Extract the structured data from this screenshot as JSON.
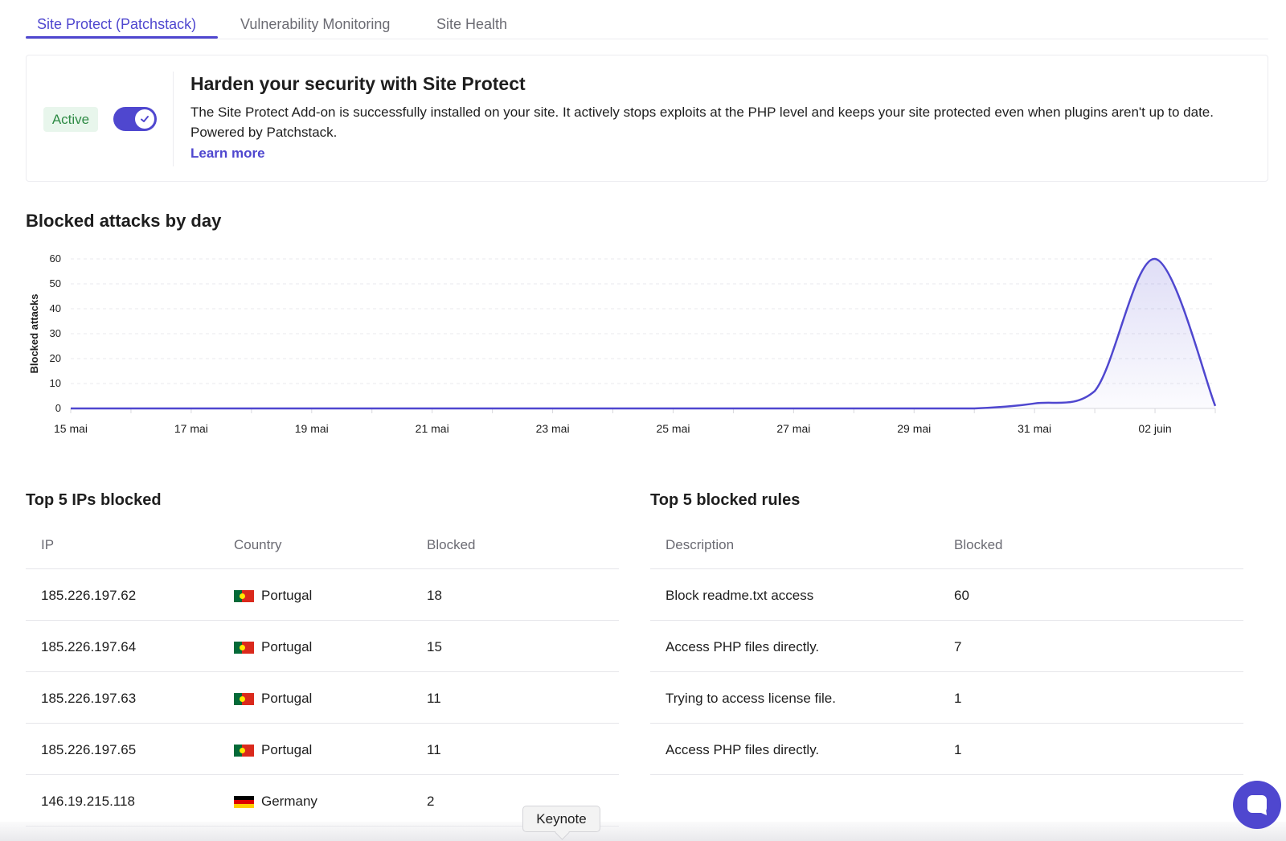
{
  "tabs": [
    {
      "label": "Site Protect (Patchstack)",
      "active": true
    },
    {
      "label": "Vulnerability Monitoring",
      "active": false
    },
    {
      "label": "Site Health",
      "active": false
    }
  ],
  "protect_card": {
    "status_badge": "Active",
    "toggle_on": true,
    "title": "Harden your security with Site Protect",
    "description": "The Site Protect Add-on is successfully installed on your site. It actively stops exploits at the PHP level and keeps your site protected even when plugins aren't up to date. Powered by Patchstack.",
    "learn_more": "Learn more"
  },
  "chart_section": {
    "title": "Blocked attacks by day"
  },
  "chart_data": {
    "type": "area",
    "title": "",
    "xlabel": "",
    "ylabel": "Blocked attacks",
    "ylim": [
      0,
      60
    ],
    "yticks": [
      0,
      10,
      20,
      30,
      40,
      50,
      60
    ],
    "xticks": [
      "15 mai",
      "17 mai",
      "19 mai",
      "21 mai",
      "23 mai",
      "25 mai",
      "27 mai",
      "29 mai",
      "31 mai",
      "02 juin"
    ],
    "grid": true,
    "series": [
      {
        "color": "#4f47cf",
        "x": [
          "15 mai",
          "16 mai",
          "17 mai",
          "18 mai",
          "19 mai",
          "20 mai",
          "21 mai",
          "22 mai",
          "23 mai",
          "24 mai",
          "25 mai",
          "26 mai",
          "27 mai",
          "28 mai",
          "29 mai",
          "30 mai",
          "31 mai",
          "01 juin",
          "02 juin",
          "03 juin"
        ],
        "values": [
          0,
          0,
          0,
          0,
          0,
          0,
          0,
          0,
          0,
          0,
          0,
          0,
          0,
          0,
          0,
          0,
          2,
          7,
          60,
          1
        ]
      }
    ]
  },
  "ips_table": {
    "title": "Top 5 IPs blocked",
    "headers": [
      "IP",
      "Country",
      "Blocked"
    ],
    "rows": [
      {
        "ip": "185.226.197.62",
        "country": "Portugal",
        "flag": "pt",
        "blocked": "18"
      },
      {
        "ip": "185.226.197.64",
        "country": "Portugal",
        "flag": "pt",
        "blocked": "15"
      },
      {
        "ip": "185.226.197.63",
        "country": "Portugal",
        "flag": "pt",
        "blocked": "11"
      },
      {
        "ip": "185.226.197.65",
        "country": "Portugal",
        "flag": "pt",
        "blocked": "11"
      },
      {
        "ip": "146.19.215.118",
        "country": "Germany",
        "flag": "de",
        "blocked": "2"
      }
    ]
  },
  "rules_table": {
    "title": "Top 5 blocked rules",
    "headers": [
      "Description",
      "Blocked"
    ],
    "rows": [
      {
        "description": "Block readme.txt access",
        "blocked": "60"
      },
      {
        "description": "Access PHP files directly.",
        "blocked": "7"
      },
      {
        "description": "Trying to access license file.",
        "blocked": "1"
      },
      {
        "description": "Access PHP files directly.",
        "blocked": "1"
      }
    ]
  },
  "tooltip": {
    "label": "Keynote"
  },
  "colors": {
    "accent": "#4f47cf",
    "success_bg": "#e8f6ec",
    "success_text": "#2e8b45"
  },
  "icons": {
    "toggle": "check-icon",
    "chat": "chat-bubble-icon"
  }
}
